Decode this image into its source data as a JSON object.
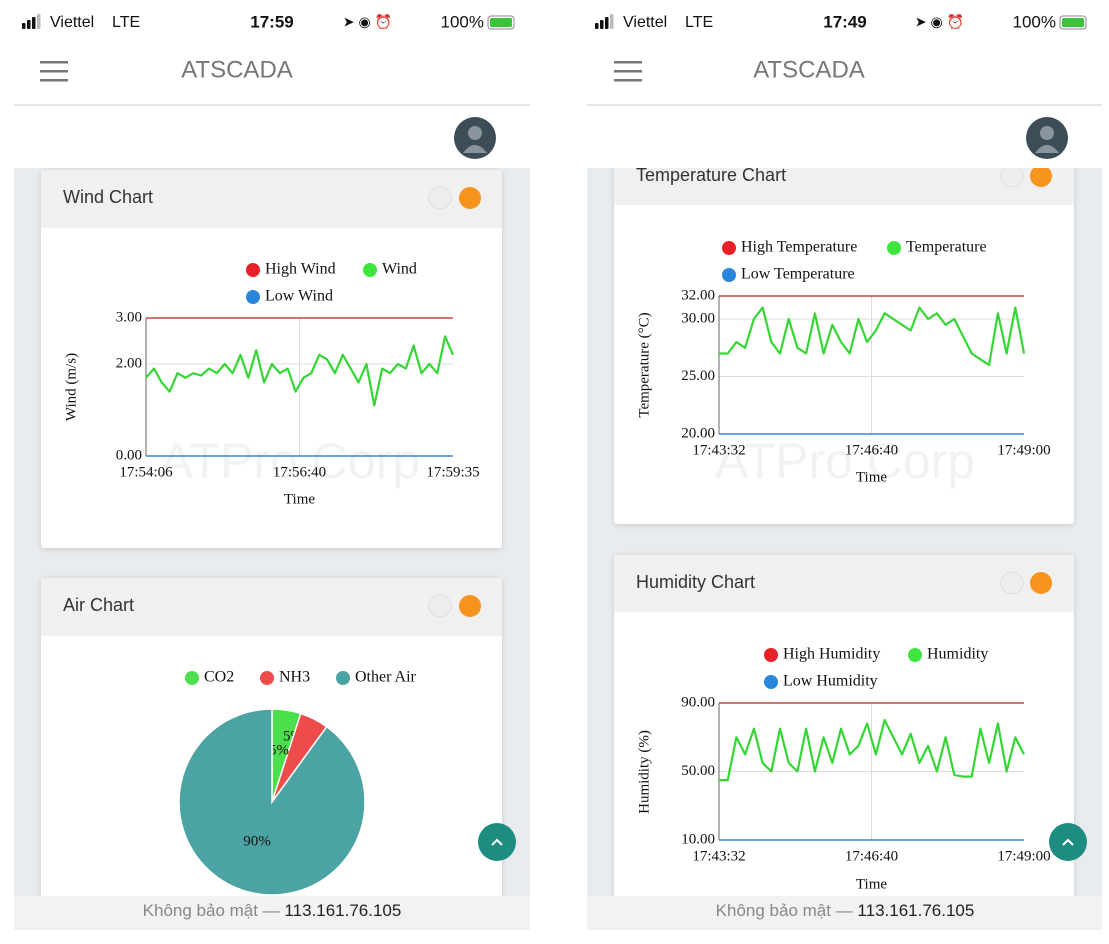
{
  "screens": [
    {
      "status": {
        "carrier": "Viettel",
        "network": "LTE",
        "time": "17:59",
        "battery": "100%"
      },
      "app_title": "ATSCADA",
      "watermark": "ATPro Corp",
      "cards": [
        {
          "title": "Wind Chart",
          "chart_data": {
            "type": "line",
            "y_label": "Wind (m/s)",
            "x_label": "Time",
            "xticks": [
              "17:54:06",
              "17:56:40",
              "17:59:35"
            ],
            "ylim": [
              0,
              3
            ],
            "yticks": [
              {
                "value": 0,
                "label": "0.00"
              },
              {
                "value": 2,
                "label": "2.00"
              },
              {
                "value": 3,
                "label": "3.00"
              }
            ],
            "grid": true,
            "series": [
              {
                "name": "High Wind",
                "color": "#e8202a",
                "values": [
                  3,
                  3,
                  3,
                  3,
                  3,
                  3,
                  3,
                  3,
                  3,
                  3,
                  3,
                  3,
                  3,
                  3,
                  3,
                  3,
                  3,
                  3,
                  3,
                  3,
                  3,
                  3,
                  3,
                  3,
                  3,
                  3,
                  3,
                  3,
                  3,
                  3,
                  3,
                  3,
                  3,
                  3,
                  3,
                  3,
                  3,
                  3,
                  3,
                  3
                ]
              },
              {
                "name": "Wind",
                "color": "#3de63d",
                "values": [
                  1.7,
                  1.9,
                  1.6,
                  1.4,
                  1.8,
                  1.7,
                  1.8,
                  1.75,
                  1.9,
                  1.8,
                  2.0,
                  1.8,
                  2.2,
                  1.7,
                  2.3,
                  1.6,
                  2.0,
                  1.8,
                  1.9,
                  1.4,
                  1.7,
                  1.8,
                  2.2,
                  2.1,
                  1.8,
                  2.2,
                  1.9,
                  1.6,
                  2.0,
                  1.1,
                  1.9,
                  1.8,
                  2.0,
                  1.9,
                  2.4,
                  1.8,
                  2.0,
                  1.8,
                  2.6,
                  2.2
                ]
              },
              {
                "name": "Low Wind",
                "color": "#2a86d8",
                "values": [
                  0,
                  0,
                  0,
                  0,
                  0,
                  0,
                  0,
                  0,
                  0,
                  0,
                  0,
                  0,
                  0,
                  0,
                  0,
                  0,
                  0,
                  0,
                  0,
                  0,
                  0,
                  0,
                  0,
                  0,
                  0,
                  0,
                  0,
                  0,
                  0,
                  0,
                  0,
                  0,
                  0,
                  0,
                  0,
                  0,
                  0,
                  0,
                  0,
                  0
                ]
              }
            ]
          }
        },
        {
          "title": "Air Chart",
          "chart_data": {
            "type": "pie",
            "categories": [
              "CO2",
              "NH3",
              "Other Air"
            ],
            "values": [
              5,
              5,
              90
            ],
            "value_labels": [
              "5%",
              "5%",
              "90%"
            ],
            "colors": [
              "#4be04b",
              "#ee4b4b",
              "#4ba3a3"
            ]
          }
        }
      ],
      "footer": {
        "security": "Không bảo mật —",
        "address": "113.161.76.105"
      }
    },
    {
      "status": {
        "carrier": "Viettel",
        "network": "LTE",
        "time": "17:49",
        "battery": "100%"
      },
      "app_title": "ATSCADA",
      "watermark": "ATPro Corp",
      "cards": [
        {
          "title": "Temperature Chart",
          "chart_data": {
            "type": "line",
            "y_label": "Temperature (°C)",
            "x_label": "Time",
            "xticks": [
              "17:43:32",
              "17:46:40",
              "17:49:00"
            ],
            "ylim": [
              20,
              32
            ],
            "yticks": [
              {
                "value": 20,
                "label": "20.00"
              },
              {
                "value": 25,
                "label": "25.00"
              },
              {
                "value": 30,
                "label": "30.00"
              },
              {
                "value": 32,
                "label": "32.00"
              }
            ],
            "grid": true,
            "series": [
              {
                "name": "High Temperature",
                "color": "#e8202a",
                "values": [
                  32,
                  32,
                  32,
                  32,
                  32,
                  32,
                  32,
                  32,
                  32,
                  32,
                  32,
                  32,
                  32,
                  32,
                  32,
                  32,
                  32,
                  32,
                  32,
                  32,
                  32,
                  32,
                  32,
                  32,
                  32,
                  32,
                  32,
                  32,
                  32,
                  32,
                  32,
                  32,
                  32,
                  32,
                  32,
                  32
                ]
              },
              {
                "name": "Temperature",
                "color": "#3de63d",
                "values": [
                  27,
                  27,
                  28,
                  27.5,
                  30,
                  31,
                  28,
                  27,
                  30,
                  27.5,
                  27,
                  30.5,
                  27,
                  29.5,
                  28,
                  27,
                  30,
                  28,
                  29,
                  30.5,
                  30,
                  29.5,
                  29,
                  31,
                  30,
                  30.5,
                  29.5,
                  30,
                  28.5,
                  27,
                  26.5,
                  26,
                  30.5,
                  27,
                  31,
                  27
                ]
              },
              {
                "name": "Low Temperature",
                "color": "#2a86d8",
                "values": [
                  20,
                  20,
                  20,
                  20,
                  20,
                  20,
                  20,
                  20,
                  20,
                  20,
                  20,
                  20,
                  20,
                  20,
                  20,
                  20,
                  20,
                  20,
                  20,
                  20,
                  20,
                  20,
                  20,
                  20,
                  20,
                  20,
                  20,
                  20,
                  20,
                  20,
                  20,
                  20,
                  20,
                  20,
                  20,
                  20
                ]
              }
            ]
          }
        },
        {
          "title": "Humidity Chart",
          "chart_data": {
            "type": "line",
            "y_label": "Humidity (%)",
            "x_label": "Time",
            "xticks": [
              "17:43:32",
              "17:46:40",
              "17:49:00"
            ],
            "ylim": [
              10,
              90
            ],
            "yticks": [
              {
                "value": 10,
                "label": "10.00"
              },
              {
                "value": 50,
                "label": "50.00"
              },
              {
                "value": 90,
                "label": "90.00"
              }
            ],
            "grid": true,
            "series": [
              {
                "name": "High Humidity",
                "color": "#e8202a",
                "values": [
                  90,
                  90,
                  90,
                  90,
                  90,
                  90,
                  90,
                  90,
                  90,
                  90,
                  90,
                  90,
                  90,
                  90,
                  90,
                  90,
                  90,
                  90,
                  90,
                  90,
                  90,
                  90,
                  90,
                  90,
                  90,
                  90,
                  90,
                  90,
                  90,
                  90,
                  90,
                  90,
                  90,
                  90,
                  90,
                  90
                ]
              },
              {
                "name": "Humidity",
                "color": "#3de63d",
                "values": [
                  45,
                  45,
                  70,
                  60,
                  75,
                  55,
                  50,
                  75,
                  55,
                  50,
                  75,
                  50,
                  70,
                  55,
                  75,
                  60,
                  65,
                  78,
                  60,
                  80,
                  70,
                  60,
                  72,
                  55,
                  65,
                  50,
                  70,
                  48,
                  47,
                  47,
                  75,
                  55,
                  78,
                  50,
                  70,
                  60
                ]
              },
              {
                "name": "Low Humidity",
                "color": "#2a86d8",
                "values": [
                  10,
                  10,
                  10,
                  10,
                  10,
                  10,
                  10,
                  10,
                  10,
                  10,
                  10,
                  10,
                  10,
                  10,
                  10,
                  10,
                  10,
                  10,
                  10,
                  10,
                  10,
                  10,
                  10,
                  10,
                  10,
                  10,
                  10,
                  10,
                  10,
                  10,
                  10,
                  10,
                  10,
                  10,
                  10,
                  10
                ]
              }
            ]
          }
        }
      ],
      "footer": {
        "security": "Không bảo mật —",
        "address": "113.161.76.105"
      }
    }
  ]
}
